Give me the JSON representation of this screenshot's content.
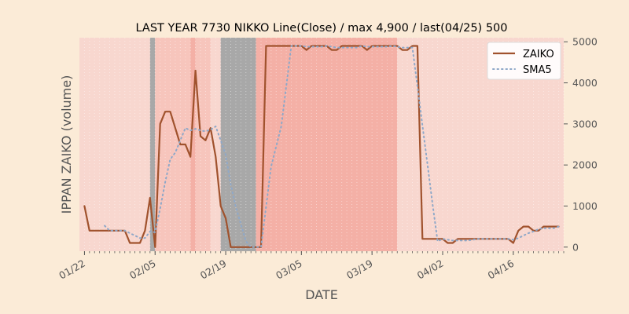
{
  "chart_data": {
    "type": "line",
    "title": "LAST YEAR 7730 NIKKO Line(Close) / max 4,900 / last(04/25) 500",
    "xlabel": "DATE",
    "ylabel": "IPPAN ZAIKO (volume)",
    "ylim": [
      -100,
      5100
    ],
    "xlim": [
      "01/21",
      "04/26"
    ],
    "y_axis_position": "right",
    "yticks": [
      0,
      1000,
      2000,
      3000,
      4000,
      5000
    ],
    "xticks": [
      {
        "date": "01/22",
        "label": "01/22"
      },
      {
        "date": "02/05",
        "label": "02/05"
      },
      {
        "date": "02/19",
        "label": "02/19"
      },
      {
        "date": "03/05",
        "label": "03/05"
      },
      {
        "date": "03/19",
        "label": "03/19"
      },
      {
        "date": "04/02",
        "label": "04/02"
      },
      {
        "date": "04/16",
        "label": "04/16"
      }
    ],
    "legend_position": "top-right",
    "grid": true,
    "background_bands": [
      {
        "from": "01/22",
        "to": "02/04",
        "color": "#f8d7cf"
      },
      {
        "from": "02/04",
        "to": "02/05",
        "color": "#a8a8a8"
      },
      {
        "from": "02/05",
        "to": "02/12",
        "color": "#f7c5bc"
      },
      {
        "from": "02/12",
        "to": "02/13",
        "color": "#f4b0a6"
      },
      {
        "from": "02/13",
        "to": "02/16",
        "color": "#f7c5bc"
      },
      {
        "from": "02/16",
        "to": "02/18",
        "color": "#f8d7cf"
      },
      {
        "from": "02/18",
        "to": "02/25",
        "color": "#a8a8a8"
      },
      {
        "from": "02/25",
        "to": "03/24",
        "color": "#f4b0a6"
      },
      {
        "from": "03/24",
        "to": "04/26",
        "color": "#f8d7cf"
      }
    ],
    "series": [
      {
        "name": "ZAIKO",
        "color": "#a0522d",
        "style": "solid",
        "x": [
          "01/22",
          "01/23",
          "01/24",
          "01/25",
          "01/26",
          "01/27",
          "01/28",
          "01/29",
          "01/30",
          "01/31",
          "02/01",
          "02/02",
          "02/03",
          "02/04",
          "02/05",
          "02/06",
          "02/07",
          "02/08",
          "02/09",
          "02/10",
          "02/11",
          "02/12",
          "02/13",
          "02/14",
          "02/15",
          "02/16",
          "02/17",
          "02/18",
          "02/19",
          "02/20",
          "02/21",
          "02/22",
          "02/23",
          "02/24",
          "02/25",
          "02/26",
          "02/27",
          "02/28",
          "03/01",
          "03/02",
          "03/03",
          "03/04",
          "03/05",
          "03/06",
          "03/07",
          "03/08",
          "03/09",
          "03/10",
          "03/11",
          "03/12",
          "03/13",
          "03/14",
          "03/15",
          "03/16",
          "03/17",
          "03/18",
          "03/19",
          "03/20",
          "03/21",
          "03/22",
          "03/23",
          "03/24",
          "03/25",
          "03/26",
          "03/27",
          "03/28",
          "03/29",
          "03/30",
          "03/31",
          "04/01",
          "04/02",
          "04/03",
          "04/04",
          "04/05",
          "04/06",
          "04/07",
          "04/08",
          "04/09",
          "04/10",
          "04/11",
          "04/12",
          "04/13",
          "04/14",
          "04/15",
          "04/16",
          "04/17",
          "04/18",
          "04/19",
          "04/20",
          "04/21",
          "04/22",
          "04/23",
          "04/24",
          "04/25"
        ],
        "values": [
          1000,
          400,
          400,
          400,
          400,
          400,
          400,
          400,
          400,
          100,
          100,
          100,
          400,
          1200,
          0,
          3000,
          3300,
          3300,
          2900,
          2500,
          2500,
          2200,
          4300,
          2700,
          2600,
          2900,
          2200,
          1000,
          700,
          0,
          0,
          0,
          0,
          0,
          0,
          0,
          4900,
          4900,
          4900,
          4900,
          4900,
          4900,
          4900,
          4800,
          4900,
          4900,
          4900,
          4900,
          4800,
          4800,
          4900,
          4900,
          4900,
          4900,
          4900,
          4800,
          4900,
          4900,
          4900,
          4900,
          4900,
          4900,
          4800,
          4800,
          4900,
          4900,
          200,
          200,
          200,
          200,
          200,
          100,
          100,
          200,
          200,
          200,
          200,
          200,
          200,
          200,
          200,
          200,
          200,
          200,
          100,
          400,
          500,
          500,
          400,
          400,
          500,
          500,
          500,
          500
        ]
      },
      {
        "name": "SMA5",
        "color": "#8fa8c8",
        "style": "dotted",
        "x": [
          "01/26",
          "01/27",
          "01/28",
          "01/29",
          "01/30",
          "01/31",
          "02/01",
          "02/02",
          "02/03",
          "02/04",
          "02/05",
          "02/06",
          "02/07",
          "02/08",
          "02/09",
          "02/10",
          "02/11",
          "02/12",
          "02/13",
          "02/14",
          "02/15",
          "02/16",
          "02/17",
          "02/18",
          "02/19",
          "02/20",
          "02/21",
          "02/22",
          "02/23",
          "02/24",
          "02/25",
          "02/26",
          "02/27",
          "02/28",
          "03/01",
          "03/02",
          "03/03",
          "03/04",
          "03/05",
          "03/06",
          "03/07",
          "03/08",
          "03/09",
          "03/10",
          "03/11",
          "03/12",
          "03/13",
          "03/14",
          "03/15",
          "03/16",
          "03/17",
          "03/18",
          "03/19",
          "03/20",
          "03/21",
          "03/22",
          "03/23",
          "03/24",
          "03/25",
          "03/26",
          "03/27",
          "03/28",
          "03/29",
          "03/30",
          "03/31",
          "04/01",
          "04/02",
          "04/03",
          "04/04",
          "04/05",
          "04/06",
          "04/07",
          "04/08",
          "04/09",
          "04/10",
          "04/11",
          "04/12",
          "04/13",
          "04/14",
          "04/15",
          "04/16",
          "04/17",
          "04/18",
          "04/19",
          "04/20",
          "04/21",
          "04/22",
          "04/23",
          "04/24",
          "04/25"
        ],
        "values": [
          520,
          400,
          400,
          400,
          400,
          340,
          280,
          220,
          220,
          380,
          360,
          940,
          1580,
          2140,
          2300,
          2600,
          2900,
          2840,
          2880,
          2840,
          2820,
          2860,
          2940,
          2600,
          2240,
          1520,
          980,
          560,
          140,
          0,
          0,
          0,
          980,
          1960,
          2940,
          3920,
          4900,
          4900,
          4900,
          4880,
          4880,
          4880,
          4880,
          4900,
          4880,
          4860,
          4860,
          4860,
          4860,
          4860,
          4900,
          4880,
          4880,
          4880,
          4880,
          4880,
          4900,
          4880,
          4860,
          4860,
          4860,
          3920,
          2960,
          2000,
          1040,
          140,
          200,
          180,
          160,
          160,
          160,
          160,
          180,
          200,
          200,
          200,
          200,
          200,
          200,
          200,
          180,
          220,
          280,
          340,
          380,
          440,
          460,
          460,
          460,
          500
        ]
      }
    ]
  }
}
